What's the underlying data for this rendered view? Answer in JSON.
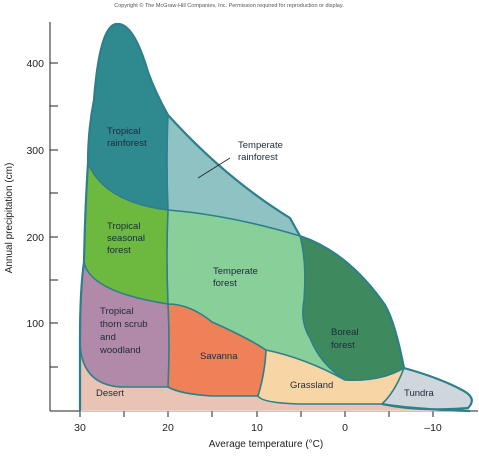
{
  "copyright": "Copyright © The McGraw-Hill Companies, Inc. Permission required for reproduction or display.",
  "x_axis": {
    "title": "Average temperature (°C)",
    "ticks": [
      "30",
      "20",
      "10",
      "0",
      "–10"
    ]
  },
  "y_axis": {
    "title": "Annual precipitation (cm)",
    "ticks": [
      "100",
      "200",
      "300",
      "400"
    ]
  },
  "biomes": {
    "tropical_rainforest": [
      "Tropical",
      "rainforest"
    ],
    "temperate_rainforest": [
      "Temperate",
      "rainforest"
    ],
    "tropical_seasonal_forest": [
      "Tropical",
      "seasonal",
      "forest"
    ],
    "temperate_forest": [
      "Temperate",
      "forest"
    ],
    "tropical_thorn_scrub": [
      "Tropical",
      "thorn scrub",
      "and",
      "woodland"
    ],
    "savanna": "Savanna",
    "boreal_forest": [
      "Boreal",
      "forest"
    ],
    "grassland": "Grassland",
    "desert": "Desert",
    "tundra": "Tundra"
  },
  "colors": {
    "tropical_rainforest": "#2f8a8f",
    "temperate_rainforest": "#8fc2c3",
    "tropical_seasonal_forest": "#6db93f",
    "temperate_forest": "#88cf9a",
    "tropical_thorn_scrub": "#b189a9",
    "savanna": "#ef8158",
    "boreal_forest": "#3e8a5e",
    "grassland": "#f7d5a4",
    "desert": "#e9c3b4",
    "tundra": "#cfd6dc",
    "outline": "#2d7f8a"
  }
}
